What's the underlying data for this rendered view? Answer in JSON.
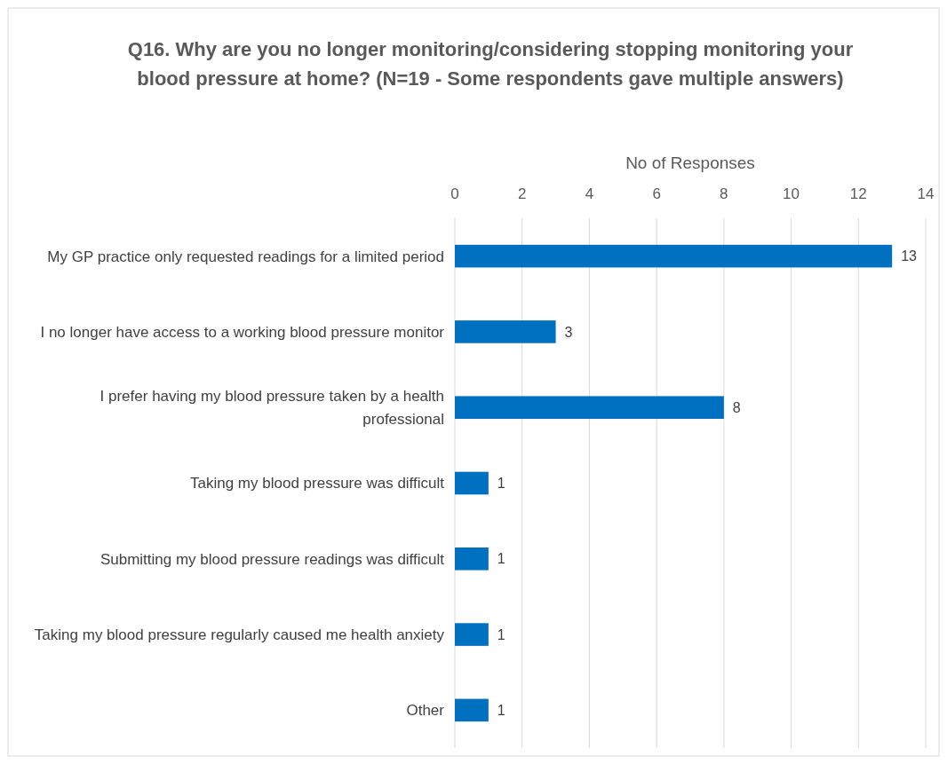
{
  "chart_data": {
    "type": "bar",
    "orientation": "horizontal",
    "title": "Q16. Why are you no longer monitoring/considering stopping monitoring your blood pressure at home? (N=19 - Some respondents gave multiple answers)",
    "xlabel": "No of Responses",
    "categories": [
      "My GP practice only requested readings for a limited period",
      "I no longer have access to a working blood pressure monitor",
      "I prefer having my blood pressure taken by a health professional",
      "Taking my blood pressure was difficult",
      "Submitting my blood pressure readings was difficult",
      "Taking my blood pressure regularly caused me health anxiety",
      "Other"
    ],
    "values": [
      13,
      3,
      8,
      1,
      1,
      1,
      1
    ],
    "color": "#0070c0",
    "xlim": [
      0,
      14
    ],
    "xticks": [
      0,
      2,
      4,
      6,
      8,
      10,
      12,
      14
    ],
    "grid": "x",
    "data_labels": true
  }
}
